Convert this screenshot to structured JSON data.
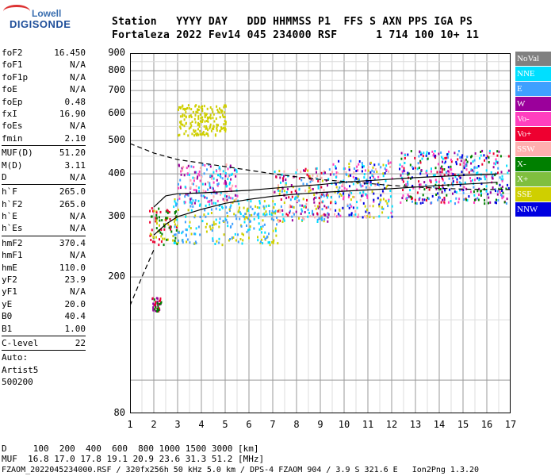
{
  "logo": {
    "line1": "Lowell",
    "line2": "DIGISONDE"
  },
  "header": {
    "line1": "Station   YYYY DAY   DDD HHMMSS P1  FFS S AXN PPS IGA PS",
    "line2": "Fortaleza 2022 Fev14 045 234000 RSF      1 714 100 10+ 11"
  },
  "params": [
    {
      "group": [
        {
          "k": "foF2",
          "v": "16.450"
        },
        {
          "k": "foF1",
          "v": "N/A"
        },
        {
          "k": "foF1p",
          "v": "N/A"
        },
        {
          "k": "foE",
          "v": "N/A"
        },
        {
          "k": "foEp",
          "v": "0.48"
        },
        {
          "k": "fxI",
          "v": "16.90"
        },
        {
          "k": "foEs",
          "v": "N/A"
        },
        {
          "k": "fmin",
          "v": "2.10"
        }
      ]
    },
    {
      "group": [
        {
          "k": "MUF(D)",
          "v": "51.20"
        },
        {
          "k": "M(D)",
          "v": "3.11"
        },
        {
          "k": "D",
          "v": "N/A"
        }
      ]
    },
    {
      "group": [
        {
          "k": "h`F",
          "v": "265.0"
        },
        {
          "k": "h`F2",
          "v": "265.0"
        },
        {
          "k": "h`E",
          "v": "N/A"
        },
        {
          "k": "h`Es",
          "v": "N/A"
        }
      ]
    },
    {
      "group": [
        {
          "k": "hmF2",
          "v": "370.4"
        },
        {
          "k": "hmF1",
          "v": "N/A"
        },
        {
          "k": "hmE",
          "v": "110.0"
        },
        {
          "k": "yF2",
          "v": "23.9"
        },
        {
          "k": "yF1",
          "v": "N/A"
        },
        {
          "k": "yE",
          "v": "20.0"
        },
        {
          "k": "B0",
          "v": "40.4"
        },
        {
          "k": "B1",
          "v": "1.00"
        }
      ]
    },
    {
      "group": [
        {
          "k": "C-level",
          "v": "22"
        }
      ]
    },
    {
      "group": [
        {
          "k": "Auto:",
          "v": ""
        },
        {
          "k": "Artist5",
          "v": ""
        },
        {
          "k": "500200",
          "v": ""
        }
      ]
    }
  ],
  "legend": [
    {
      "label": "NoVal",
      "color": "#808080"
    },
    {
      "label": "NNE",
      "color": "#00dfff"
    },
    {
      "label": "E",
      "color": "#3fa0ff"
    },
    {
      "label": "W",
      "color": "#9b009b"
    },
    {
      "label": "Vo-",
      "color": "#ff3fbf"
    },
    {
      "label": "Vo+",
      "color": "#ee0030"
    },
    {
      "label": "SSW",
      "color": "#ffafaf"
    },
    {
      "label": "X-",
      "color": "#007f00"
    },
    {
      "label": "X+",
      "color": "#7fbf3f"
    },
    {
      "label": "SSE",
      "color": "#cfcf00"
    },
    {
      "label": "NNW",
      "color": "#0000e0"
    }
  ],
  "footer": {
    "line1": "D     100  200  400  600  800 1000 1500 3000 [km]",
    "line2": "MUF  16.8 17.0 17.8 19.1 20.9 23.6 31.3 51.2 [MHz]",
    "line3": "FZAOM_2022045234000.RSF / 320fx256h 50 kHz 5.0 km / DPS-4 FZAOM 904 / 3.9 S 321.6 E   Ion2Png 1.3.20"
  },
  "chart_data": {
    "type": "scatter",
    "xlabel": "",
    "ylabel": "",
    "xlim": [
      1,
      17
    ],
    "ylim": [
      80,
      900
    ],
    "x_ticks": [
      "1",
      "2",
      "3",
      "4",
      "5",
      "6",
      "7",
      "8",
      "9",
      "10",
      "11",
      "12",
      "13",
      "14",
      "15",
      "16",
      "17"
    ],
    "y_ticks": [
      "80",
      "200",
      "300",
      "400",
      "500",
      "600",
      "700",
      "800",
      "900"
    ],
    "y_scale": "log",
    "grid": true,
    "curves": [
      {
        "name": "",
        "style": "solid",
        "x": [
          2.0,
          2.5,
          3.0,
          4.0,
          5.0,
          6.0,
          7.0,
          8.0,
          9.0,
          10.0,
          11.0,
          12.0,
          13.0,
          14.0,
          15.0,
          16.0,
          16.45
        ],
        "y": [
          265,
          285,
          300,
          315,
          328,
          337,
          344,
          349,
          353,
          356,
          359,
          362,
          366,
          370,
          373,
          376,
          378
        ]
      },
      {
        "name": "",
        "style": "solid",
        "x": [
          2.0,
          2.5,
          3.0,
          4.0,
          5.0,
          6.0,
          7.0,
          8.0,
          9.0,
          10.0,
          11.0,
          12.0,
          13.0,
          14.0,
          15.0,
          16.0,
          16.45
        ],
        "y": [
          320,
          345,
          350,
          352,
          355,
          358,
          363,
          368,
          372,
          378,
          382,
          386,
          390,
          393,
          396,
          398,
          400
        ]
      },
      {
        "name": "",
        "style": "dashed",
        "x": [
          1.0,
          1.5,
          2.0,
          3.0,
          4.0,
          5.0,
          6.0,
          7.0,
          8.0,
          9.0,
          10.0,
          11.0,
          12.0,
          13.0,
          14.0,
          15.0,
          16.0,
          17.0
        ],
        "y": [
          490,
          475,
          460,
          440,
          430,
          420,
          410,
          400,
          392,
          385,
          380,
          375,
          370,
          366,
          363,
          361,
          360,
          360
        ]
      },
      {
        "name": "",
        "style": "dashed",
        "x": [
          1.0,
          1.5,
          2.0
        ],
        "y": [
          165,
          200,
          240
        ]
      }
    ],
    "echo_regions": [
      {
        "x": [
          1.8,
          3.0
        ],
        "y": [
          250,
          320
        ],
        "colors": [
          "#ee0030",
          "#cfcf00",
          "#007f00"
        ]
      },
      {
        "x": [
          2.8,
          7.2
        ],
        "y": [
          250,
          340
        ],
        "colors": [
          "#cfcf00",
          "#3fa0ff",
          "#00dfff"
        ]
      },
      {
        "x": [
          3.0,
          5.5
        ],
        "y": [
          330,
          430
        ],
        "colors": [
          "#00dfff",
          "#3fa0ff",
          "#ff3fbf",
          "#ffafaf",
          "#9b009b"
        ]
      },
      {
        "x": [
          7.0,
          9.5
        ],
        "y": [
          290,
          420
        ],
        "colors": [
          "#3fa0ff",
          "#00dfff",
          "#ffafaf",
          "#cfcf00",
          "#9b009b",
          "#ee0030"
        ]
      },
      {
        "x": [
          9.5,
          12.0
        ],
        "y": [
          300,
          440
        ],
        "colors": [
          "#00dfff",
          "#3fa0ff",
          "#ff3fbf",
          "#ffafaf",
          "#0000e0",
          "#cfcf00"
        ]
      },
      {
        "x": [
          12.3,
          16.9
        ],
        "y": [
          330,
          470
        ],
        "colors": [
          "#0000e0",
          "#ee0030",
          "#ff3fbf",
          "#9b009b",
          "#00dfff",
          "#3fa0ff",
          "#007f00"
        ]
      },
      {
        "x": [
          3.0,
          5.0
        ],
        "y": [
          520,
          640
        ],
        "colors": [
          "#cfcf00"
        ]
      },
      {
        "x": [
          1.9,
          2.3
        ],
        "y": [
          160,
          175
        ],
        "colors": [
          "#ee0030",
          "#007f00",
          "#9b009b"
        ]
      }
    ]
  }
}
